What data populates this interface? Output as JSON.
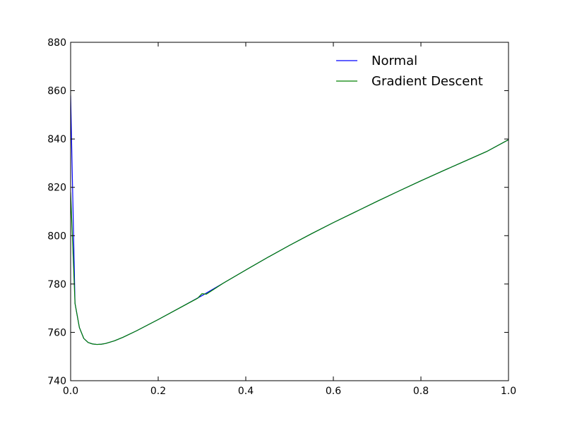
{
  "chart_data": {
    "type": "line",
    "xlim": [
      0.0,
      1.0
    ],
    "ylim": [
      740,
      880
    ],
    "x_ticks": [
      {
        "value": 0.0,
        "label": "0.0"
      },
      {
        "value": 0.2,
        "label": "0.2"
      },
      {
        "value": 0.4,
        "label": "0.4"
      },
      {
        "value": 0.6,
        "label": "0.6"
      },
      {
        "value": 0.8,
        "label": "0.8"
      },
      {
        "value": 1.0,
        "label": "1.0"
      }
    ],
    "y_ticks": [
      {
        "value": 740,
        "label": "740"
      },
      {
        "value": 760,
        "label": "760"
      },
      {
        "value": 780,
        "label": "780"
      },
      {
        "value": 800,
        "label": "800"
      },
      {
        "value": 820,
        "label": "820"
      },
      {
        "value": 840,
        "label": "840"
      },
      {
        "value": 860,
        "label": "860"
      },
      {
        "value": 880,
        "label": "880"
      }
    ],
    "grid": false,
    "legend": {
      "placement": "top-right",
      "frame": false
    },
    "series": [
      {
        "name": "Normal",
        "color": "#0000ff",
        "points": [
          [
            0.0,
            858
          ],
          [
            0.01,
            772
          ],
          [
            0.02,
            762
          ],
          [
            0.03,
            757.5
          ],
          [
            0.04,
            755.8
          ],
          [
            0.05,
            755.2
          ],
          [
            0.06,
            755.0
          ],
          [
            0.07,
            755.1
          ],
          [
            0.08,
            755.4
          ],
          [
            0.1,
            756.5
          ],
          [
            0.12,
            758.0
          ],
          [
            0.15,
            760.6
          ],
          [
            0.2,
            765.3
          ],
          [
            0.25,
            770.2
          ],
          [
            0.3,
            775.2
          ],
          [
            0.35,
            780.5
          ],
          [
            0.4,
            785.8
          ],
          [
            0.45,
            791.0
          ],
          [
            0.5,
            796.0
          ],
          [
            0.55,
            800.8
          ],
          [
            0.6,
            805.4
          ],
          [
            0.65,
            809.8
          ],
          [
            0.7,
            814.2
          ],
          [
            0.75,
            818.5
          ],
          [
            0.8,
            822.7
          ],
          [
            0.85,
            826.8
          ],
          [
            0.9,
            830.8
          ],
          [
            0.95,
            834.8
          ],
          [
            1.0,
            839.7
          ]
        ]
      },
      {
        "name": "Gradient Descent",
        "color": "#008000",
        "points": [
          [
            0.0,
            818
          ],
          [
            0.01,
            772
          ],
          [
            0.02,
            762
          ],
          [
            0.03,
            757.5
          ],
          [
            0.04,
            755.8
          ],
          [
            0.05,
            755.2
          ],
          [
            0.06,
            755.0
          ],
          [
            0.07,
            755.1
          ],
          [
            0.08,
            755.4
          ],
          [
            0.1,
            756.5
          ],
          [
            0.12,
            758.0
          ],
          [
            0.15,
            760.6
          ],
          [
            0.2,
            765.3
          ],
          [
            0.25,
            770.2
          ],
          [
            0.29,
            774.1
          ],
          [
            0.3,
            776.0
          ],
          [
            0.31,
            775.8
          ],
          [
            0.35,
            780.5
          ],
          [
            0.4,
            785.8
          ],
          [
            0.45,
            791.0
          ],
          [
            0.5,
            796.0
          ],
          [
            0.55,
            800.8
          ],
          [
            0.6,
            805.4
          ],
          [
            0.65,
            809.8
          ],
          [
            0.7,
            814.2
          ],
          [
            0.75,
            818.5
          ],
          [
            0.8,
            822.7
          ],
          [
            0.85,
            826.8
          ],
          [
            0.9,
            830.8
          ],
          [
            0.95,
            834.8
          ],
          [
            1.0,
            839.7
          ]
        ]
      }
    ]
  }
}
